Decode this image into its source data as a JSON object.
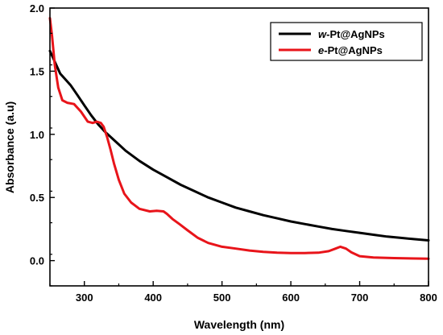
{
  "chart_data": {
    "type": "line",
    "title": "",
    "xlabel": "Wavelength (nm)",
    "ylabel": "Absorbance (a.u)",
    "xlim": [
      250,
      800
    ],
    "ylim": [
      -0.2,
      2.0
    ],
    "xticks": [
      300,
      400,
      500,
      600,
      700,
      800
    ],
    "yticks": [
      0.0,
      0.5,
      1.0,
      1.5,
      2.0
    ],
    "grid": false,
    "legend_position": "top-right",
    "series": [
      {
        "name": "w-Pt@AgNPs",
        "name_prefix": "w",
        "name_suffix": "-Pt@AgNPs",
        "color": "#000000",
        "points": [
          [
            250,
            1.66
          ],
          [
            255,
            1.6
          ],
          [
            260,
            1.54
          ],
          [
            265,
            1.48
          ],
          [
            270,
            1.45
          ],
          [
            280,
            1.39
          ],
          [
            290,
            1.31
          ],
          [
            300,
            1.23
          ],
          [
            310,
            1.15
          ],
          [
            320,
            1.08
          ],
          [
            330,
            1.02
          ],
          [
            340,
            0.97
          ],
          [
            350,
            0.92
          ],
          [
            360,
            0.87
          ],
          [
            380,
            0.79
          ],
          [
            400,
            0.72
          ],
          [
            420,
            0.66
          ],
          [
            440,
            0.6
          ],
          [
            460,
            0.55
          ],
          [
            480,
            0.5
          ],
          [
            500,
            0.46
          ],
          [
            520,
            0.42
          ],
          [
            540,
            0.39
          ],
          [
            560,
            0.36
          ],
          [
            580,
            0.335
          ],
          [
            600,
            0.31
          ],
          [
            620,
            0.29
          ],
          [
            640,
            0.27
          ],
          [
            660,
            0.25
          ],
          [
            680,
            0.235
          ],
          [
            700,
            0.22
          ],
          [
            720,
            0.205
          ],
          [
            740,
            0.19
          ],
          [
            760,
            0.18
          ],
          [
            780,
            0.17
          ],
          [
            800,
            0.16
          ]
        ]
      },
      {
        "name": "e-Pt@AgNPs",
        "name_prefix": "e",
        "name_suffix": "-Pt@AgNPs",
        "color": "#e8141a",
        "points": [
          [
            250,
            1.92
          ],
          [
            253,
            1.78
          ],
          [
            257,
            1.55
          ],
          [
            262,
            1.37
          ],
          [
            268,
            1.27
          ],
          [
            275,
            1.25
          ],
          [
            285,
            1.24
          ],
          [
            295,
            1.18
          ],
          [
            305,
            1.1
          ],
          [
            312,
            1.09
          ],
          [
            318,
            1.1
          ],
          [
            324,
            1.09
          ],
          [
            328,
            1.06
          ],
          [
            333,
            0.98
          ],
          [
            338,
            0.88
          ],
          [
            343,
            0.77
          ],
          [
            350,
            0.64
          ],
          [
            358,
            0.53
          ],
          [
            368,
            0.46
          ],
          [
            380,
            0.41
          ],
          [
            395,
            0.39
          ],
          [
            405,
            0.395
          ],
          [
            415,
            0.39
          ],
          [
            420,
            0.37
          ],
          [
            428,
            0.33
          ],
          [
            438,
            0.29
          ],
          [
            450,
            0.24
          ],
          [
            465,
            0.18
          ],
          [
            480,
            0.14
          ],
          [
            500,
            0.11
          ],
          [
            520,
            0.095
          ],
          [
            540,
            0.08
          ],
          [
            560,
            0.07
          ],
          [
            580,
            0.063
          ],
          [
            600,
            0.06
          ],
          [
            620,
            0.06
          ],
          [
            640,
            0.063
          ],
          [
            655,
            0.075
          ],
          [
            665,
            0.095
          ],
          [
            672,
            0.11
          ],
          [
            680,
            0.095
          ],
          [
            688,
            0.065
          ],
          [
            700,
            0.035
          ],
          [
            720,
            0.025
          ],
          [
            750,
            0.02
          ],
          [
            800,
            0.015
          ]
        ]
      }
    ]
  }
}
